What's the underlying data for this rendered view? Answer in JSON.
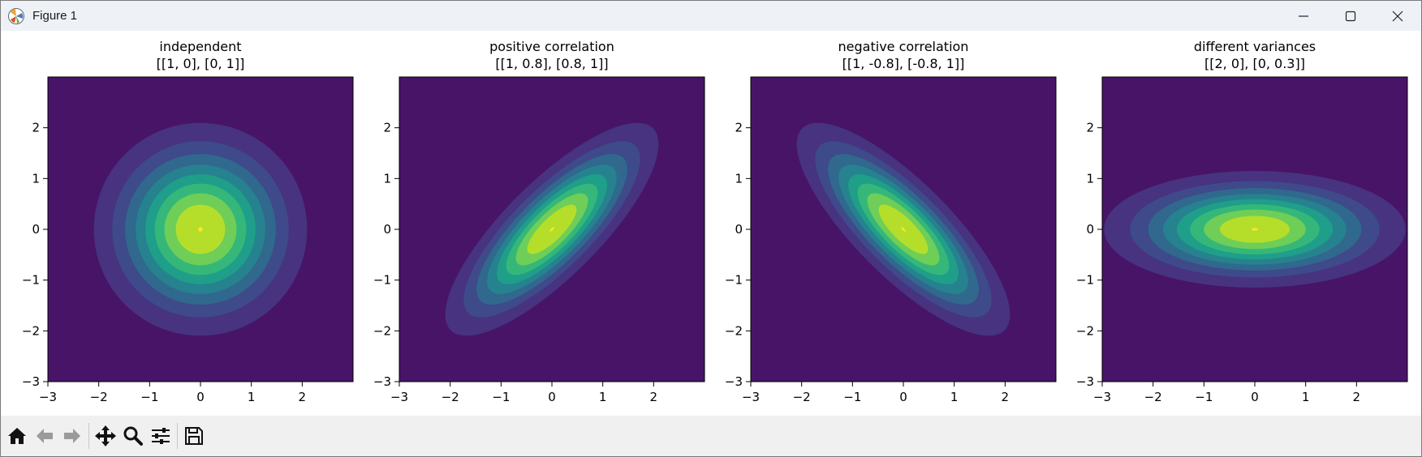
{
  "window": {
    "title": "Figure 1",
    "controls": [
      "minimize",
      "maximize",
      "close"
    ]
  },
  "toolbar": {
    "buttons": [
      {
        "name": "home",
        "icon": "home-icon"
      },
      {
        "name": "back",
        "icon": "arrow-left-icon"
      },
      {
        "name": "forward",
        "icon": "arrow-right-icon"
      },
      {
        "name": "pan",
        "icon": "move-icon"
      },
      {
        "name": "zoom",
        "icon": "magnifier-icon"
      },
      {
        "name": "configure-subplots",
        "icon": "sliders-icon"
      },
      {
        "name": "save",
        "icon": "floppy-disk-icon"
      }
    ]
  },
  "colors": {
    "viridis_levels": [
      "#481467",
      "#47337f",
      "#3e4a89",
      "#31688e",
      "#26828e",
      "#1f9e89",
      "#35b779",
      "#6ece58",
      "#b5de2b",
      "#fde725"
    ]
  },
  "chart_data": [
    {
      "type": "contourf",
      "title_line1": "independent",
      "title_line2": "[[1, 0], [0, 1]]",
      "covariance": [
        [
          1,
          0
        ],
        [
          0,
          1
        ]
      ],
      "xlim": [
        -3,
        3
      ],
      "ylim": [
        -3,
        3
      ],
      "xticks": [
        "−3",
        "−2",
        "−1",
        "0",
        "1",
        "2"
      ],
      "yticks": [
        "−3",
        "−2",
        "−1",
        "0",
        "1",
        "2"
      ]
    },
    {
      "type": "contourf",
      "title_line1": "positive correlation",
      "title_line2": "[[1, 0.8], [0.8, 1]]",
      "covariance": [
        [
          1,
          0.8
        ],
        [
          0.8,
          1
        ]
      ],
      "xlim": [
        -3,
        3
      ],
      "ylim": [
        -3,
        3
      ],
      "xticks": [
        "−3",
        "−2",
        "−1",
        "0",
        "1",
        "2"
      ],
      "yticks": [
        "−3",
        "−2",
        "−1",
        "0",
        "1",
        "2"
      ]
    },
    {
      "type": "contourf",
      "title_line1": "negative correlation",
      "title_line2": "[[1, -0.8], [-0.8, 1]]",
      "covariance": [
        [
          1,
          -0.8
        ],
        [
          -0.8,
          1
        ]
      ],
      "xlim": [
        -3,
        3
      ],
      "ylim": [
        -3,
        3
      ],
      "xticks": [
        "−3",
        "−2",
        "−1",
        "0",
        "1",
        "2"
      ],
      "yticks": [
        "−3",
        "−2",
        "−1",
        "0",
        "1",
        "2"
      ]
    },
    {
      "type": "contourf",
      "title_line1": "different variances",
      "title_line2": "[[2, 0], [0, 0.3]]",
      "covariance": [
        [
          2,
          0
        ],
        [
          0,
          0.3
        ]
      ],
      "xlim": [
        -3,
        3
      ],
      "ylim": [
        -3,
        3
      ],
      "xticks": [
        "−3",
        "−2",
        "−1",
        "0",
        "1",
        "2"
      ],
      "yticks": [
        "−3",
        "−2",
        "−1",
        "0",
        "1",
        "2"
      ]
    }
  ]
}
